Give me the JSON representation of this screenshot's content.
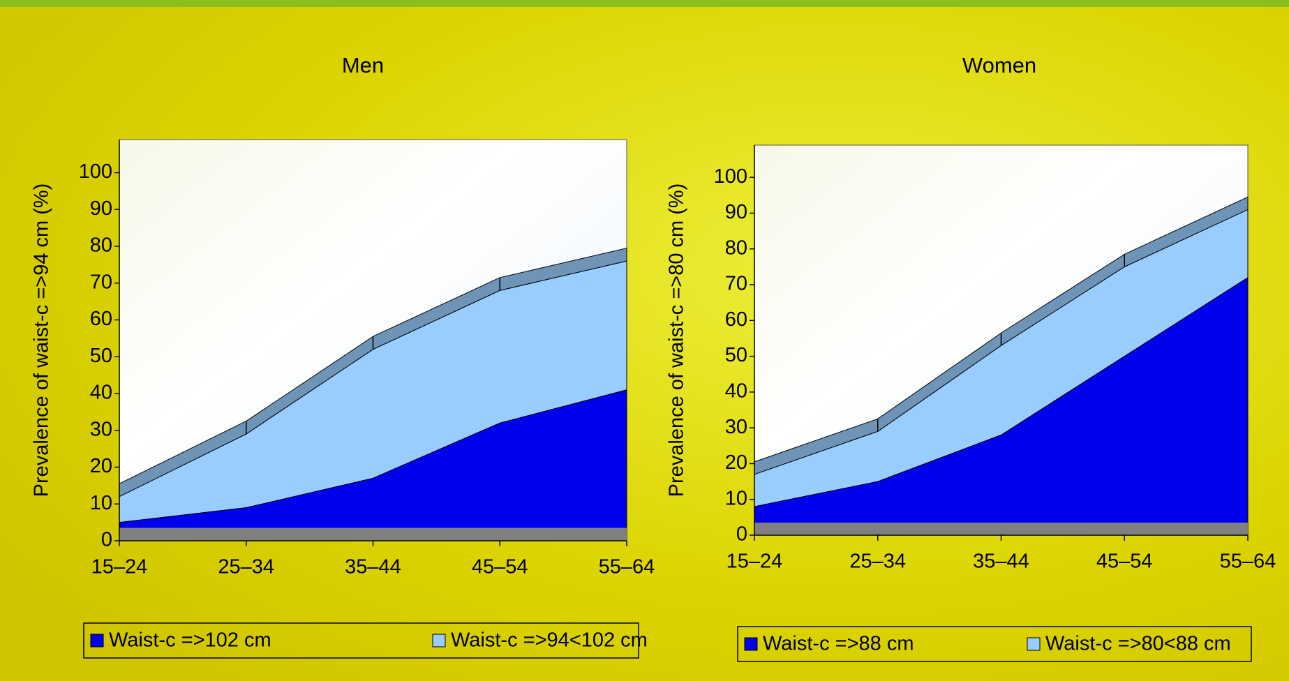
{
  "chart_data": [
    {
      "type": "area",
      "stacked": true,
      "title": "Men",
      "y_label": "Prevalence of waist-c =>94 cm (%)",
      "categories": [
        "15–24",
        "25–34",
        "35–44",
        "45–54",
        "55–64"
      ],
      "series": [
        {
          "name": "Waist-c =>102 cm",
          "color": "#0000ee",
          "values": [
            5,
            9,
            17,
            32,
            41
          ]
        },
        {
          "name": "Waist-c =>94<102 cm",
          "color": "#99ccff",
          "values": [
            7,
            20,
            35,
            36,
            35
          ]
        }
      ],
      "ylim": [
        0,
        109
      ],
      "yticks": [
        0,
        10,
        20,
        30,
        40,
        50,
        60,
        70,
        80,
        90,
        100
      ]
    },
    {
      "type": "area",
      "stacked": true,
      "title": "Women",
      "y_label": "Prevalence of waist-c =>80 cm (%)",
      "categories": [
        "15–24",
        "25–34",
        "35–44",
        "45–54",
        "55–64"
      ],
      "series": [
        {
          "name": "Waist-c =>88 cm",
          "color": "#0000ee",
          "values": [
            8,
            15,
            28,
            50,
            72
          ]
        },
        {
          "name": "Waist-c =>80<88 cm",
          "color": "#99ccff",
          "values": [
            9,
            14,
            25,
            25,
            19
          ]
        }
      ],
      "ylim": [
        0,
        109
      ],
      "yticks": [
        0,
        10,
        20,
        30,
        40,
        50,
        60,
        70,
        80,
        90,
        100
      ]
    }
  ]
}
